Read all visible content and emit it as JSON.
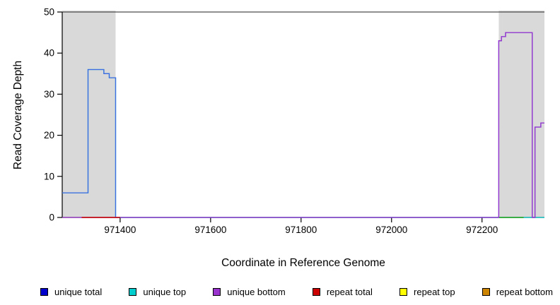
{
  "chart_data": {
    "type": "line",
    "subtype": "step-coverage",
    "title": "",
    "xlabel": "Coordinate in Reference Genome",
    "ylabel": "Read Coverage Depth",
    "xlim": [
      971272,
      972338
    ],
    "ylim": [
      0,
      50
    ],
    "x_ticks": [
      971400,
      971600,
      971800,
      972000,
      972200
    ],
    "y_ticks": [
      0,
      10,
      20,
      30,
      40,
      50
    ],
    "grid": false,
    "plot_background": "#ffffff",
    "cap_line_y": 50,
    "cap_line_color": "#4d4d4d",
    "axis_color": "#000000",
    "shaded_regions": [
      {
        "x0": 971272,
        "x1": 971390,
        "color": "#d9d9d9",
        "label": "left-shaded-region"
      },
      {
        "x0": 972237,
        "x1": 972338,
        "color": "#d9d9d9",
        "label": "right-shaded-region"
      }
    ],
    "series": [
      {
        "name": "unique top",
        "color": "#00cdcd",
        "segments": [
          [
            971272,
            971329,
            6
          ],
          [
            971329,
            971364,
            36
          ],
          [
            971364,
            971376,
            35
          ],
          [
            971376,
            971390,
            34
          ],
          [
            971390,
            972338,
            0
          ]
        ]
      },
      {
        "name": "unique total",
        "color": "#4169e1",
        "segments": [
          [
            971272,
            971329,
            6
          ],
          [
            971329,
            971364,
            36
          ],
          [
            971364,
            971376,
            35
          ],
          [
            971376,
            971390,
            34
          ],
          [
            971390,
            972237,
            0
          ],
          [
            972237,
            972243,
            43
          ],
          [
            972243,
            972252,
            44
          ],
          [
            972252,
            972311,
            45
          ],
          [
            972311,
            972317,
            0
          ],
          [
            972317,
            972330,
            22
          ],
          [
            972330,
            972338,
            23
          ]
        ]
      },
      {
        "name": "unique bottom",
        "color": "#9a32cd",
        "segments": [
          [
            971272,
            972237,
            0
          ],
          [
            972237,
            972243,
            43
          ],
          [
            972243,
            972252,
            44
          ],
          [
            972252,
            972311,
            45
          ],
          [
            972311,
            972317,
            0
          ],
          [
            972317,
            972330,
            22
          ],
          [
            972330,
            972338,
            23
          ]
        ]
      }
    ],
    "baseline_overlays": [
      {
        "name": "repeat-total-baseline",
        "color": "#cd0000",
        "x0": 971315,
        "x1": 971400,
        "y": 0
      },
      {
        "name": "right-region-baseline",
        "color": "#22aa22",
        "x0": 972238,
        "x1": 972292,
        "y": 0
      }
    ],
    "legend": {
      "position": "bottom",
      "items": [
        {
          "label": "unique total",
          "color": "#0000cd"
        },
        {
          "label": "unique top",
          "color": "#00cdcd"
        },
        {
          "label": "unique bottom",
          "color": "#9a32cd"
        },
        {
          "label": "repeat total",
          "color": "#cd0000"
        },
        {
          "label": "repeat top",
          "color": "#ffff00"
        },
        {
          "label": "repeat bottom",
          "color": "#cd8500"
        }
      ]
    }
  }
}
